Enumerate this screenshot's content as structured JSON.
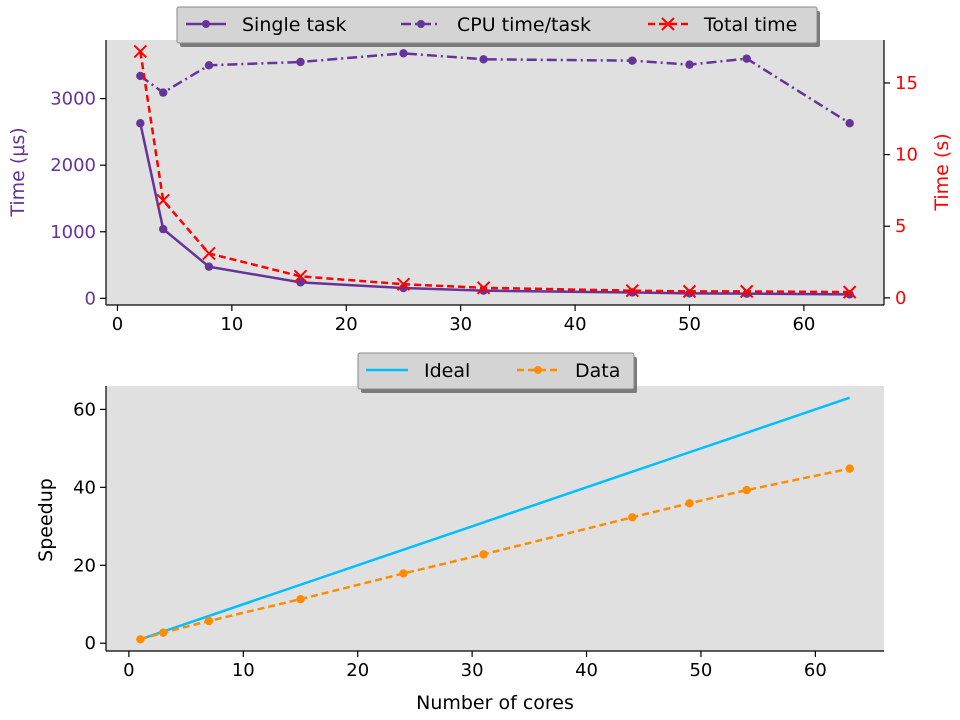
{
  "chart_data": [
    {
      "type": "line",
      "x": [
        2,
        4,
        8,
        16,
        25,
        32,
        45,
        50,
        55,
        64
      ],
      "series": [
        {
          "name": "Single task",
          "axis": "left",
          "color": "#663399",
          "style": "solid",
          "marker": "dot",
          "values": [
            2630,
            1040,
            475,
            240,
            155,
            115,
            88,
            75,
            70,
            60
          ]
        },
        {
          "name": "CPU time/task",
          "axis": "left",
          "color": "#663399",
          "style": "dashdot",
          "marker": "dot",
          "values": [
            3340,
            3090,
            3500,
            3550,
            3680,
            3590,
            3570,
            3510,
            3600,
            2630
          ]
        },
        {
          "name": "Total time",
          "axis": "right",
          "color": "#ff0000",
          "style": "dashed",
          "marker": "x",
          "values": [
            17.2,
            6.8,
            3.1,
            1.5,
            0.95,
            0.7,
            0.5,
            0.45,
            0.45,
            0.4
          ]
        }
      ],
      "ylabel": "Time (μs)",
      "ylabel_right": "Time (s)",
      "xticks": [
        "0",
        "10",
        "20",
        "30",
        "40",
        "50",
        "60"
      ],
      "yticks_left": [
        "0",
        "1000",
        "2000",
        "3000"
      ],
      "yticks_right": [
        "0",
        "5",
        "10",
        "15"
      ],
      "xlim": [
        -1,
        67
      ],
      "ylim": [
        -100,
        3880
      ],
      "ylim_right": [
        -0.5,
        18
      ],
      "legend": "top-center",
      "colors": {
        "left_axis": "#663399",
        "right_axis": "#ff0000",
        "background": "#e0e0e0"
      }
    },
    {
      "type": "line",
      "x": [
        1,
        3,
        7,
        15,
        24,
        31,
        44,
        49,
        54,
        63
      ],
      "series": [
        {
          "name": "Ideal",
          "color": "#00bfff",
          "style": "solid",
          "marker": "none",
          "values": [
            1,
            3,
            7,
            15,
            24,
            31,
            44,
            49,
            54,
            63
          ]
        },
        {
          "name": "Data",
          "color": "#ff8c00",
          "style": "dashed",
          "marker": "dot",
          "values": [
            1,
            2.7,
            5.7,
            11.3,
            17.9,
            22.8,
            32.3,
            35.9,
            39.3,
            44.8
          ]
        }
      ],
      "xlabel": "Number of cores",
      "ylabel": "Speedup",
      "xticks": [
        "0",
        "10",
        "20",
        "30",
        "40",
        "50",
        "60"
      ],
      "yticks": [
        "0",
        "20",
        "40",
        "60"
      ],
      "xlim": [
        -2,
        66
      ],
      "ylim": [
        -2,
        66
      ],
      "legend": "top-center",
      "colors": {
        "background": "#e0e0e0"
      }
    }
  ]
}
